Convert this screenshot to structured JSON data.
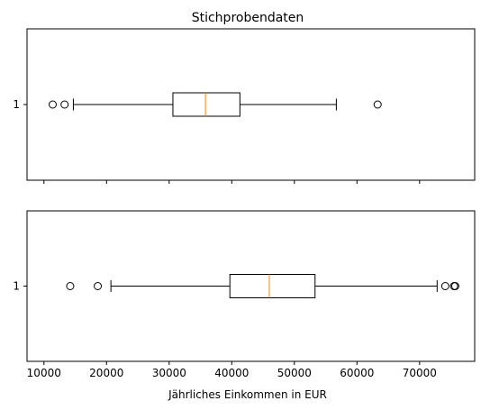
{
  "chart_data": {
    "type": "boxplot",
    "orientation": "horizontal",
    "title": "Stichprobendaten",
    "xlabel": "Jährliches Einkommen in EUR",
    "ylabel": "",
    "xlim": [
      7300,
      78800
    ],
    "x_ticks": [
      10000,
      20000,
      30000,
      40000,
      50000,
      60000,
      70000
    ],
    "x_tick_labels": [
      "10000",
      "20000",
      "30000",
      "40000",
      "50000",
      "60000",
      "70000"
    ],
    "shared_x": true,
    "box_color": "#000000",
    "median_color": "#ff7f0e",
    "panels": [
      {
        "y_tick_label": "1",
        "whisker_low": 14700,
        "q1": 30600,
        "median": 35800,
        "q3": 41300,
        "whisker_high": 56700,
        "outliers": [
          11400,
          13300,
          63300
        ]
      },
      {
        "y_tick_label": "1",
        "whisker_low": 20700,
        "q1": 39700,
        "median": 46000,
        "q3": 53300,
        "whisker_high": 72800,
        "outliers": [
          14200,
          18600,
          74100,
          75500,
          75700
        ]
      }
    ]
  }
}
